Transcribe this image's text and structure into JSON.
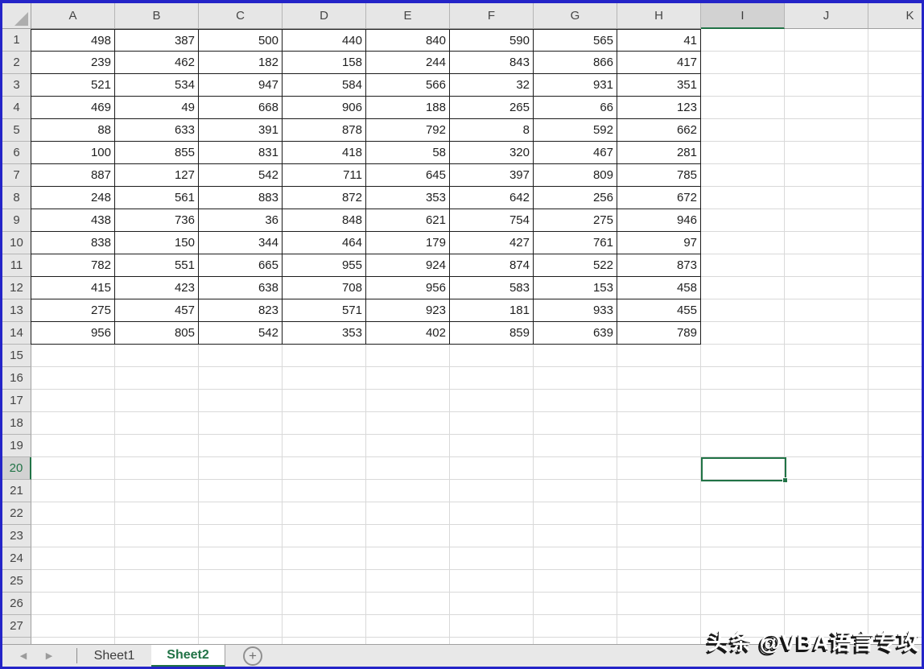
{
  "app": {
    "name": "Excel worksheet"
  },
  "colors": {
    "accent_green": "#217346",
    "window_border_blue": "#2424c8",
    "header_bg": "#e6e6e6",
    "header_highlight_bg": "#d2d2d2",
    "gridline": "#d9d9d9",
    "data_border": "#1c1c1c"
  },
  "grid": {
    "columns": [
      "A",
      "B",
      "C",
      "D",
      "E",
      "F",
      "G",
      "H",
      "I",
      "J",
      "K"
    ],
    "row_labels": [
      1,
      2,
      3,
      4,
      5,
      6,
      7,
      8,
      9,
      10,
      11,
      12,
      13,
      14,
      15,
      16,
      17,
      18,
      19,
      20,
      21,
      22,
      23,
      24,
      25,
      26,
      27
    ],
    "data_column_count": 8,
    "values": [
      [
        498,
        387,
        500,
        440,
        840,
        590,
        565,
        41
      ],
      [
        239,
        462,
        182,
        158,
        244,
        843,
        866,
        417
      ],
      [
        521,
        534,
        947,
        584,
        566,
        32,
        931,
        351
      ],
      [
        469,
        49,
        668,
        906,
        188,
        265,
        66,
        123
      ],
      [
        88,
        633,
        391,
        878,
        792,
        8,
        592,
        662
      ],
      [
        100,
        855,
        831,
        418,
        58,
        320,
        467,
        281
      ],
      [
        887,
        127,
        542,
        711,
        645,
        397,
        809,
        785
      ],
      [
        248,
        561,
        883,
        872,
        353,
        642,
        256,
        672
      ],
      [
        438,
        736,
        36,
        848,
        621,
        754,
        275,
        946
      ],
      [
        838,
        150,
        344,
        464,
        179,
        427,
        761,
        97
      ],
      [
        782,
        551,
        665,
        955,
        924,
        874,
        522,
        873
      ],
      [
        415,
        423,
        638,
        708,
        956,
        583,
        153,
        458
      ],
      [
        275,
        457,
        823,
        571,
        923,
        181,
        933,
        455
      ],
      [
        956,
        805,
        542,
        353,
        402,
        859,
        639,
        789
      ]
    ],
    "selection": {
      "cell": "I20",
      "column": "I",
      "row": 20
    }
  },
  "sheet_tabs": {
    "nav_left_icon": "◀",
    "nav_right_icon": "▶",
    "tabs": [
      {
        "label": "Sheet1",
        "active": false
      },
      {
        "label": "Sheet2",
        "active": true
      }
    ],
    "add_button": "+"
  },
  "watermark": {
    "text": "头条 @VBA语言专攻"
  }
}
